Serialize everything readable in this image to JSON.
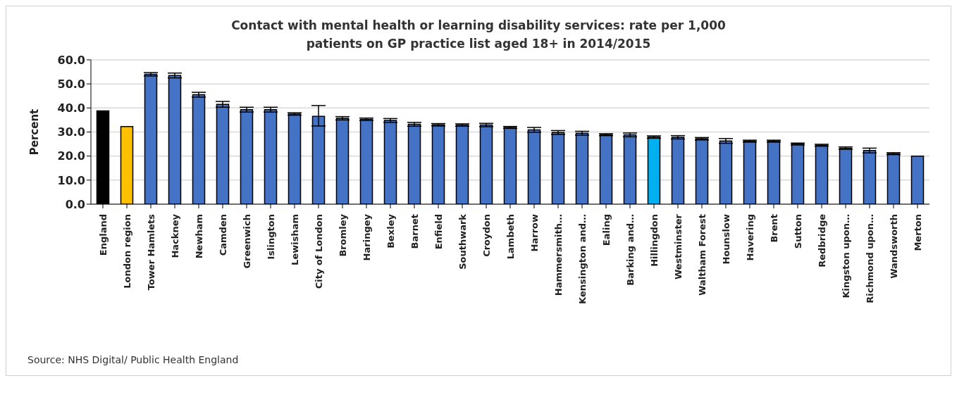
{
  "chart_data": {
    "type": "bar",
    "title": "Contact with mental health or learning disability services: rate per 1,000 patients on GP practice list aged 18+ in 2014/2015",
    "ylabel": "Percent",
    "categories": [
      "England",
      "London region",
      "Tower Hamlets",
      "Hackney",
      "Newham",
      "Camden",
      "Greenwich",
      "Islington",
      "Lewisham",
      "City of London",
      "Bromley",
      "Haringey",
      "Bexley",
      "Barnet",
      "Enfield",
      "Southwark",
      "Croydon",
      "Lambeth",
      "Harrow",
      "Hammersmith…",
      "Kensington and…",
      "Ealing",
      "Barking and…",
      "Hillingdon",
      "Westminster",
      "Waltham Forest",
      "Hounslow",
      "Havering",
      "Brent",
      "Sutton",
      "Redbridge",
      "Kingston upon…",
      "Richmond upon…",
      "Wandsworth",
      "Merton"
    ],
    "values": [
      38.8,
      32.3,
      54.0,
      53.5,
      45.5,
      41.5,
      39.3,
      39.3,
      37.5,
      36.5,
      35.7,
      35.3,
      34.8,
      33.2,
      33.0,
      32.9,
      32.9,
      31.9,
      30.9,
      29.8,
      29.5,
      28.9,
      28.8,
      27.9,
      27.8,
      27.2,
      26.3,
      26.2,
      26.2,
      25.0,
      24.5,
      23.3,
      22.3,
      21.0,
      20.0
    ],
    "errors": [
      null,
      null,
      0.7,
      1.0,
      1.0,
      1.2,
      1.0,
      1.0,
      0.5,
      [
        32.5,
        41.0
      ],
      0.7,
      0.5,
      0.8,
      0.8,
      0.5,
      0.5,
      0.7,
      0.4,
      1.0,
      0.8,
      0.8,
      0.4,
      0.8,
      0.5,
      0.7,
      0.5,
      1.0,
      0.4,
      0.4,
      0.4,
      0.4,
      0.5,
      1.0,
      0.4,
      null
    ],
    "colors": [
      "#000000",
      "#ffc000",
      "#4472c4",
      "#4472c4",
      "#4472c4",
      "#4472c4",
      "#4472c4",
      "#4472c4",
      "#4472c4",
      "#4472c4",
      "#4472c4",
      "#4472c4",
      "#4472c4",
      "#4472c4",
      "#4472c4",
      "#4472c4",
      "#4472c4",
      "#4472c4",
      "#4472c4",
      "#4472c4",
      "#4472c4",
      "#4472c4",
      "#4472c4",
      "#00b0f0",
      "#4472c4",
      "#4472c4",
      "#4472c4",
      "#4472c4",
      "#4472c4",
      "#4472c4",
      "#4472c4",
      "#4472c4",
      "#4472c4",
      "#4472c4",
      "#4472c4"
    ],
    "ylim": [
      0,
      60
    ],
    "yticks": [
      {
        "value": 0,
        "label": "0.0"
      },
      {
        "value": 10,
        "label": "10.0"
      },
      {
        "value": 20,
        "label": "20.0"
      },
      {
        "value": 30,
        "label": "30.0"
      },
      {
        "value": 40,
        "label": "40.0"
      },
      {
        "value": 50,
        "label": "50.0"
      },
      {
        "value": 60,
        "label": "60.0"
      }
    ],
    "grid": "y",
    "legend": false,
    "annotations": [
      "Source: NHS Digital/ Public Health England"
    ]
  }
}
